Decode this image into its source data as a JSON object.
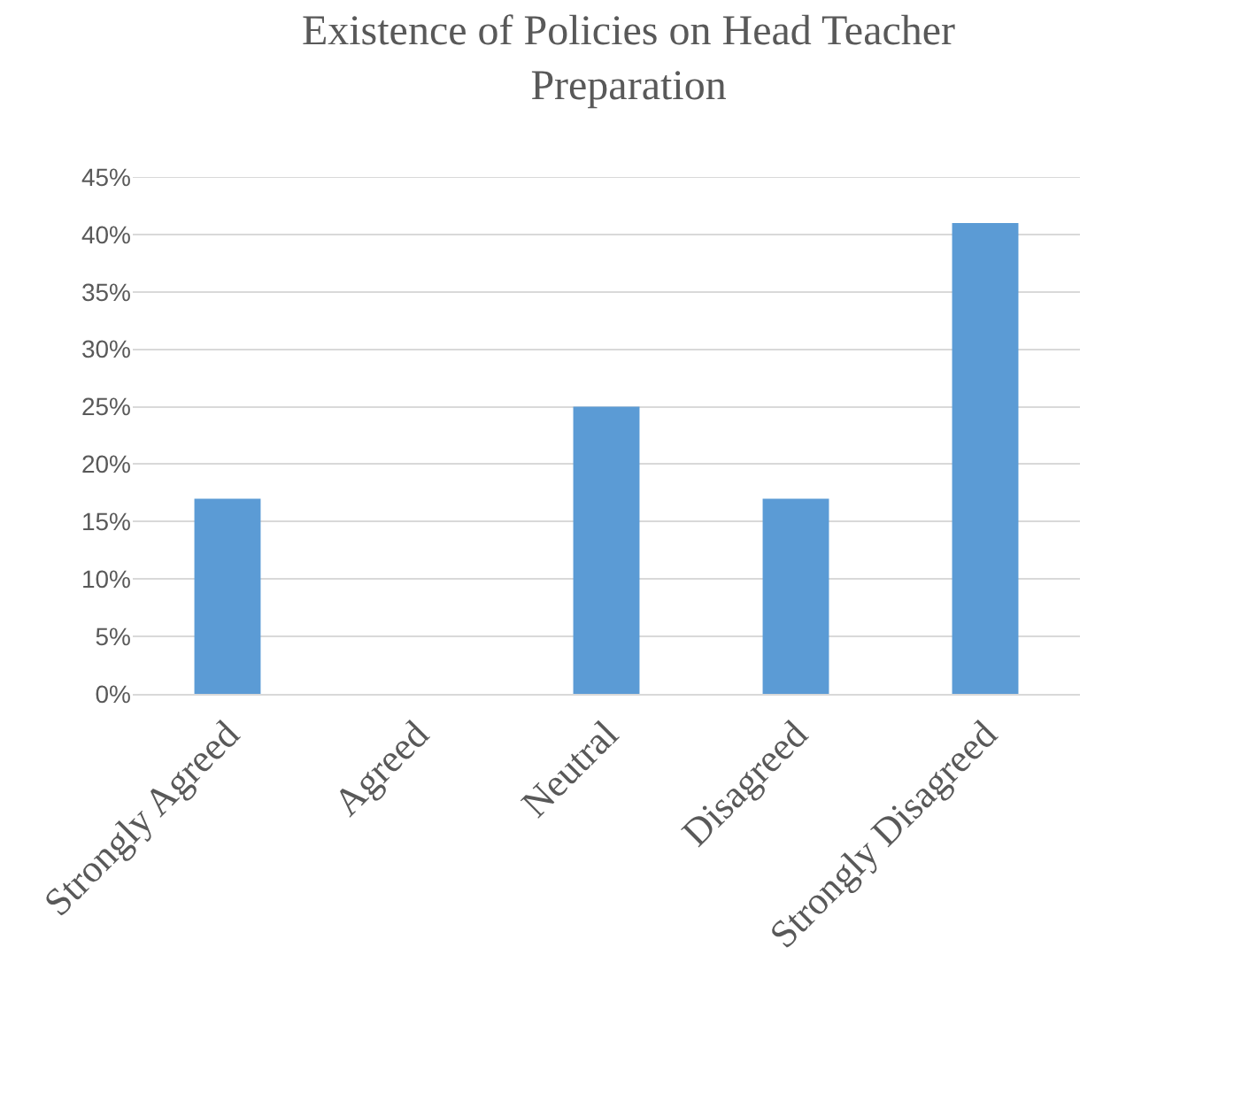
{
  "chart_data": {
    "type": "bar",
    "title": "Existence of Policies on Head Teacher Preparation",
    "categories": [
      "Strongly Agreed",
      "Agreed",
      "Neutral",
      "Disagreed",
      "Strongly Disagreed"
    ],
    "values": [
      17,
      0,
      25,
      17,
      41
    ],
    "color": "#5b9bd5",
    "ylim": [
      0,
      45
    ],
    "yticks": [
      {
        "value": 0,
        "label": "0%"
      },
      {
        "value": 5,
        "label": "5%"
      },
      {
        "value": 10,
        "label": "10%"
      },
      {
        "value": 15,
        "label": "15%"
      },
      {
        "value": 20,
        "label": "20%"
      },
      {
        "value": 25,
        "label": "25%"
      },
      {
        "value": 30,
        "label": "30%"
      },
      {
        "value": 35,
        "label": "35%"
      },
      {
        "value": 40,
        "label": "40%"
      },
      {
        "value": 45,
        "label": "45%"
      }
    ],
    "grid": "y"
  }
}
